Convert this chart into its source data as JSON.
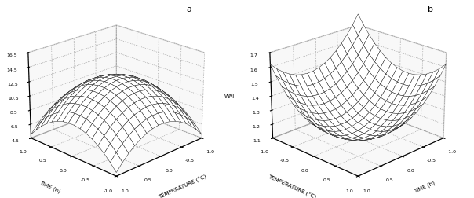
{
  "subplot_a": {
    "label": "a",
    "xlabel": "TEMPERATURE (°C)",
    "ylabel": "TIME (h)",
    "zlabel": "(%)",
    "xlim": [
      -1.0,
      1.0
    ],
    "ylim": [
      -1.0,
      1.0
    ],
    "zlim": [
      4.5,
      16.5
    ],
    "zticks": [
      4.5,
      6.5,
      8.5,
      10.5,
      12.5,
      14.5,
      16.5
    ],
    "xticks": [
      -1.0,
      -0.5,
      0.0,
      0.5,
      1.0
    ],
    "yticks": [
      -1.0,
      -0.5,
      0.0,
      0.5,
      1.0
    ],
    "surface_coeffs": {
      "a0": 13.0,
      "a1": 0.0,
      "a2": 0.0,
      "a3": -4.0,
      "a4": -4.0,
      "a5": 0.0
    },
    "elev": 22,
    "azim": 225
  },
  "subplot_b": {
    "label": "b",
    "xlabel": "TIME (h)",
    "ylabel": "TEMPERATURE (°C)",
    "zlabel": "WAI",
    "xlim": [
      -1.0,
      1.0
    ],
    "ylim": [
      -1.0,
      1.0
    ],
    "zlim": [
      1.1,
      1.7
    ],
    "zticks": [
      1.1,
      1.2,
      1.3,
      1.4,
      1.5,
      1.6,
      1.7
    ],
    "xticks": [
      -1.0,
      -0.5,
      0.0,
      0.5,
      1.0
    ],
    "yticks": [
      -1.0,
      -0.5,
      0.0,
      0.5,
      1.0
    ],
    "surface_coeffs": {
      "b0": 1.18,
      "b1": -0.08,
      "b2": -0.08,
      "b3": 0.22,
      "b4": 0.22,
      "b5": 0.0
    },
    "elev": 22,
    "azim": 45
  },
  "surface_color": "#ffffff",
  "surface_edge_color": "#222222",
  "surface_linewidth": 0.35,
  "n_grid": 16,
  "background_color": "#ffffff",
  "figure_width": 6.04,
  "figure_height": 2.53,
  "dpi": 100,
  "tick_fontsize": 4.5,
  "label_fontsize": 5.0,
  "pane_color": "#f0f0f0"
}
